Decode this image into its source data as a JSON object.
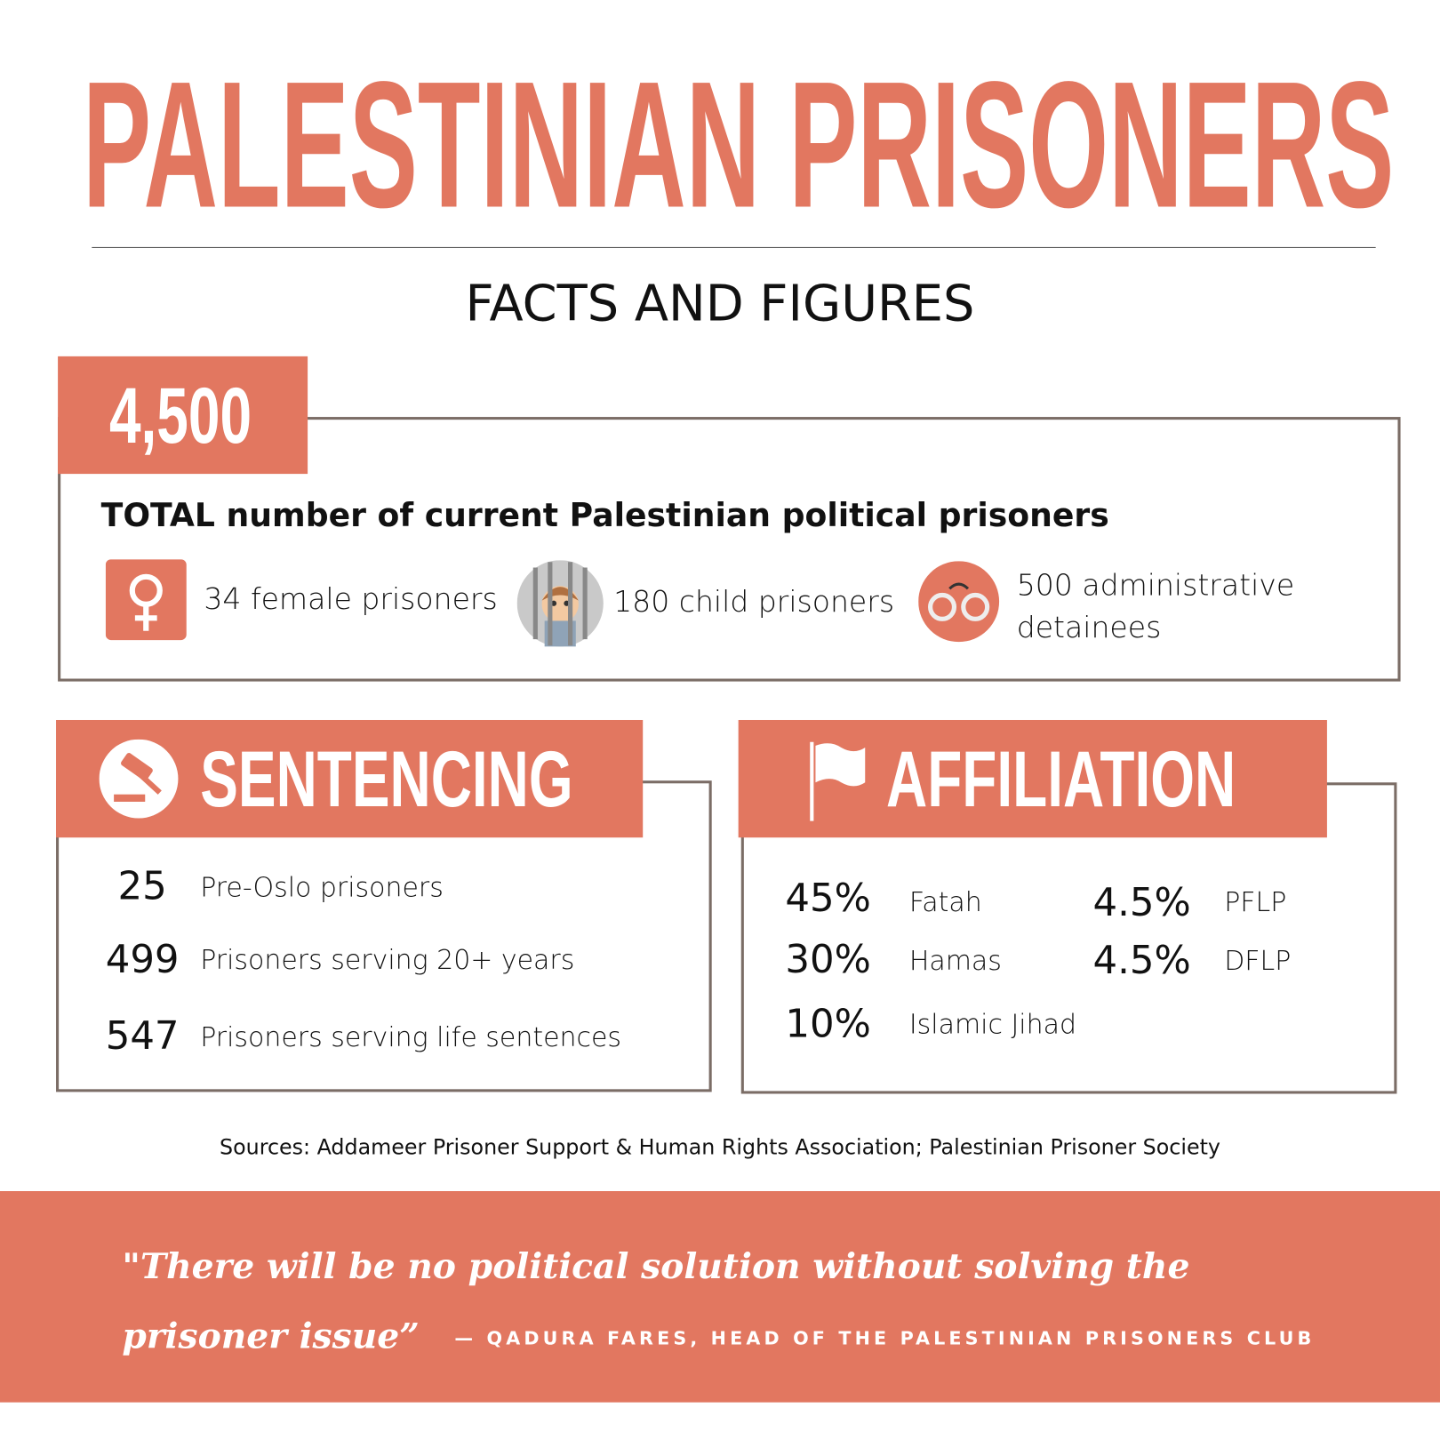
{
  "header": {
    "title": "PALESTINIAN PRISONERS",
    "subtitle": "FACTS AND FIGURES"
  },
  "total": {
    "figure": "4,500",
    "label": "TOTAL number of current Palestinian political prisoners",
    "items": [
      "34 female prisoners",
      "180 child prisoners",
      "500 administrative detainees"
    ]
  },
  "sentencing": {
    "title": "SENTENCING",
    "rows": [
      {
        "number": "25",
        "label": "Pre-Oslo prisoners"
      },
      {
        "number": "499",
        "label": "Prisoners serving 20+ years"
      },
      {
        "number": "547",
        "label": "Prisoners serving life sentences"
      }
    ]
  },
  "affiliation": {
    "title": "AFFILIATION",
    "rows": [
      {
        "share": "45%",
        "label": "Fatah"
      },
      {
        "share": "30%",
        "label": "Hamas"
      },
      {
        "share": "10%",
        "label": "Islamic Jihad"
      },
      {
        "share": "4.5%",
        "label": "PFLP"
      },
      {
        "share": "4.5%",
        "label": "DFLP"
      }
    ]
  },
  "sources": "Sources: Addameer Prisoner Support & Human Rights Association; Palestinian Prisoner Society",
  "quote": {
    "text": "\"There will be no political solution without solving the prisoner issue”",
    "attribution": "— QADURA FARES, HEAD OF THE PALESTINIAN PRISONERS CLUB"
  }
}
